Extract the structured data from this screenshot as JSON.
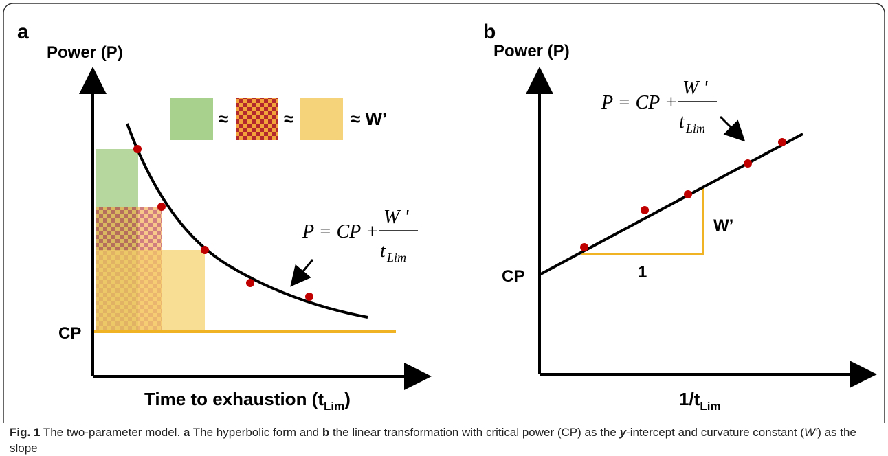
{
  "panel_a": {
    "label": "a",
    "y_label": "Power (P)",
    "cp_label": "CP",
    "legend": {
      "approx_1": "≈",
      "approx_2": "≈",
      "approx_w": "≈ W’"
    },
    "equation": {
      "lhs": "P = CP +",
      "numerator": "W '",
      "denominator": "t",
      "denominator_sub": "Lim"
    },
    "x_label": {
      "main": "Time to exhaustion (t",
      "sub": "Lim",
      "end": ")"
    }
  },
  "panel_b": {
    "label": "b",
    "y_label": "Power (P)",
    "cp_label": "CP",
    "run_label": "1",
    "rise_label": "W’",
    "equation": {
      "lhs": "P = CP +",
      "numerator": "W '",
      "denominator": "t",
      "denominator_sub": "Lim"
    },
    "x_label": {
      "main": "1/t",
      "sub": "Lim"
    }
  },
  "caption": {
    "figure": "Fig. 1",
    "part_1": " The two-parameter model. ",
    "a": "a",
    "part_2": " The hyperbolic form and ",
    "b": "b",
    "part_3": " the linear transformation with critical power (CP) as the ",
    "y": "y",
    "part_4": "-intercept and curvature constant (",
    "w": "W′",
    "part_5": ") as the slope"
  }
}
